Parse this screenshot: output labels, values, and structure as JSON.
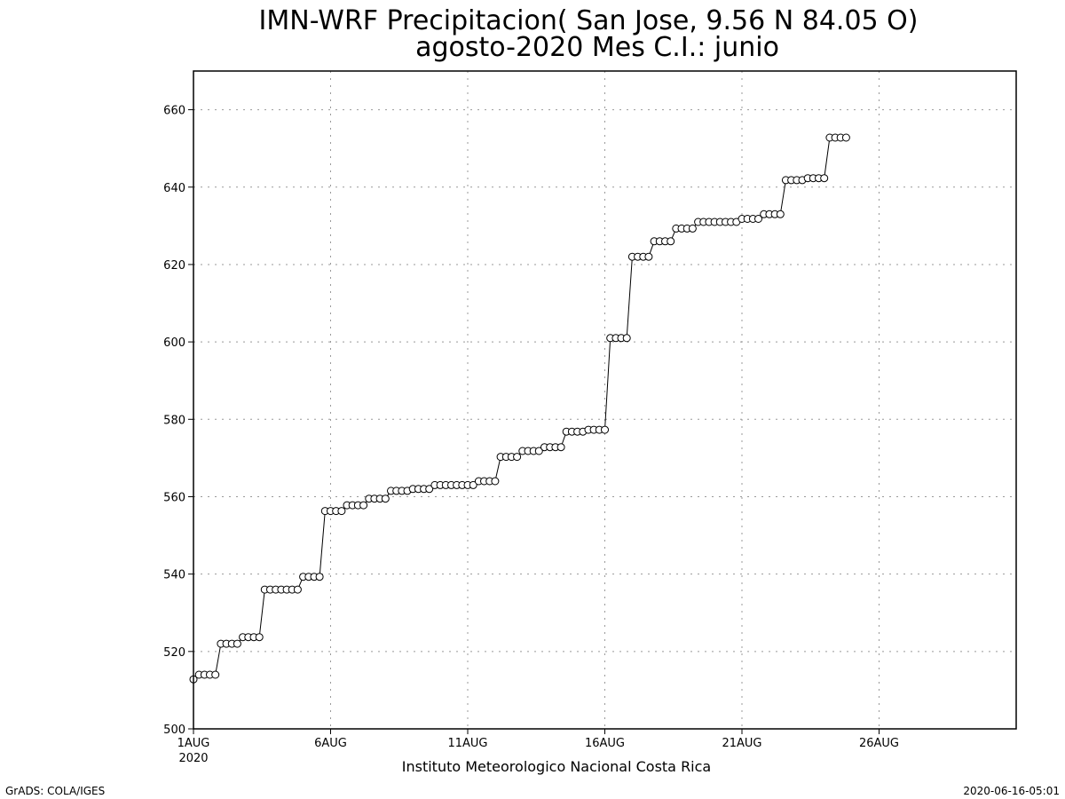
{
  "chart_data": {
    "type": "line",
    "title": "IMN-WRF  Precipitacion( San Jose, 9.56  N 84.05  O)",
    "subtitle": "agosto-2020 Mes C.I.: junio",
    "xlabel": "Instituto Meteorologico Nacional Costa Rica",
    "ylabel": "",
    "ylim": [
      500,
      670
    ],
    "yticks": [
      500,
      520,
      540,
      560,
      580,
      600,
      620,
      640,
      660
    ],
    "xlim": [
      0,
      30
    ],
    "xticks": [
      {
        "x": 0,
        "label": "1AUG",
        "sublabel": "2020"
      },
      {
        "x": 5,
        "label": "6AUG"
      },
      {
        "x": 10,
        "label": "11AUG"
      },
      {
        "x": 15,
        "label": "16AUG"
      },
      {
        "x": 20,
        "label": "21AUG"
      },
      {
        "x": 25,
        "label": "26AUG"
      }
    ],
    "grid": true,
    "marker": "open-circle",
    "series": [
      {
        "x_step_days": 0.2,
        "values": [
          512.8,
          514.0,
          514.0,
          514.0,
          514.0,
          522.0,
          522.0,
          522.0,
          522.0,
          523.7,
          523.7,
          523.7,
          523.7,
          536.0,
          536.0,
          536.0,
          536.0,
          536.0,
          536.0,
          536.0,
          539.3,
          539.3,
          539.3,
          539.3,
          556.3,
          556.3,
          556.3,
          556.3,
          557.8,
          557.8,
          557.8,
          557.8,
          559.5,
          559.5,
          559.5,
          559.5,
          561.5,
          561.5,
          561.5,
          561.5,
          562.0,
          562.0,
          562.0,
          562.0,
          563.0,
          563.0,
          563.0,
          563.0,
          563.0,
          563.0,
          563.0,
          563.0,
          564.0,
          564.0,
          564.0,
          564.0,
          570.3,
          570.3,
          570.3,
          570.3,
          571.8,
          571.8,
          571.8,
          571.8,
          572.8,
          572.8,
          572.8,
          572.8,
          576.8,
          576.8,
          576.8,
          576.8,
          577.3,
          577.3,
          577.3,
          577.3,
          601.0,
          601.0,
          601.0,
          601.0,
          622.0,
          622.0,
          622.0,
          622.0,
          626.0,
          626.0,
          626.0,
          626.0,
          629.3,
          629.3,
          629.3,
          629.3,
          631.0,
          631.0,
          631.0,
          631.0,
          631.0,
          631.0,
          631.0,
          631.0,
          631.8,
          631.8,
          631.8,
          631.8,
          633.0,
          633.0,
          633.0,
          633.0,
          641.8,
          641.8,
          641.8,
          641.8,
          642.3,
          642.3,
          642.3,
          642.3,
          652.8,
          652.8,
          652.8,
          652.8
        ]
      }
    ]
  },
  "footer": {
    "left": "GrADS: COLA/IGES",
    "right": "2020-06-16-05:01"
  }
}
